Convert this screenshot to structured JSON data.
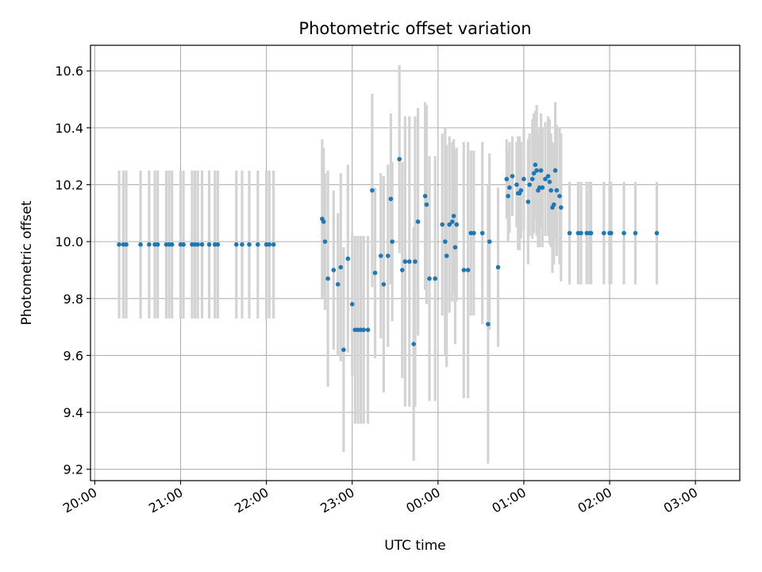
{
  "chart_data": {
    "type": "scatter",
    "title": "Photometric offset variation",
    "xlabel": "UTC time",
    "ylabel": "Photometric offset",
    "grid": true,
    "xlim": [
      "19:57",
      "03:31"
    ],
    "ylim": [
      9.16,
      10.69
    ],
    "x_ticks": [
      "20:00",
      "21:00",
      "22:00",
      "23:00",
      "00:00",
      "01:00",
      "02:00",
      "03:00"
    ],
    "y_ticks": [
      9.2,
      9.4,
      9.6,
      9.8,
      10.0,
      10.2,
      10.4,
      10.6
    ],
    "colors": {
      "points": "#1f77b4",
      "error_bars": "#d3d3d3",
      "grid": "#b0b0b0"
    },
    "series": [
      {
        "points": [
          {
            "x": "20:17",
            "y": 9.99,
            "err": 0.26
          },
          {
            "x": "20:20",
            "y": 9.99,
            "err": 0.26
          },
          {
            "x": "20:22",
            "y": 9.99,
            "err": 0.26
          },
          {
            "x": "20:32",
            "y": 9.99,
            "err": 0.26
          },
          {
            "x": "20:38",
            "y": 9.99,
            "err": 0.26
          },
          {
            "x": "20:42",
            "y": 9.99,
            "err": 0.26
          },
          {
            "x": "20:44",
            "y": 9.99,
            "err": 0.26
          },
          {
            "x": "20:50",
            "y": 9.99,
            "err": 0.26
          },
          {
            "x": "20:52",
            "y": 9.99,
            "err": 0.26
          },
          {
            "x": "20:54",
            "y": 9.99,
            "err": 0.26
          },
          {
            "x": "21:00",
            "y": 9.99,
            "err": 0.26
          },
          {
            "x": "21:02",
            "y": 9.99,
            "err": 0.26
          },
          {
            "x": "21:08",
            "y": 9.99,
            "err": 0.26
          },
          {
            "x": "21:10",
            "y": 9.99,
            "err": 0.26
          },
          {
            "x": "21:12",
            "y": 9.99,
            "err": 0.26
          },
          {
            "x": "21:15",
            "y": 9.99,
            "err": 0.26
          },
          {
            "x": "21:20",
            "y": 9.99,
            "err": 0.26
          },
          {
            "x": "21:24",
            "y": 9.99,
            "err": 0.26
          },
          {
            "x": "21:26",
            "y": 9.99,
            "err": 0.26
          },
          {
            "x": "21:39",
            "y": 9.99,
            "err": 0.26
          },
          {
            "x": "21:43",
            "y": 9.99,
            "err": 0.26
          },
          {
            "x": "21:48",
            "y": 9.99,
            "err": 0.26
          },
          {
            "x": "21:54",
            "y": 9.99,
            "err": 0.26
          },
          {
            "x": "22:00",
            "y": 9.99,
            "err": 0.26
          },
          {
            "x": "22:02",
            "y": 9.99,
            "err": 0.26
          },
          {
            "x": "22:05",
            "y": 9.99,
            "err": 0.26
          },
          {
            "x": "22:39",
            "y": 10.08,
            "err": 0.28
          },
          {
            "x": "22:40",
            "y": 10.07,
            "err": 0.26
          },
          {
            "x": "22:41",
            "y": 10.0,
            "err": 0.24
          },
          {
            "x": "22:43",
            "y": 9.87,
            "err": 0.38
          },
          {
            "x": "22:47",
            "y": 9.9,
            "err": 0.28
          },
          {
            "x": "22:50",
            "y": 9.85,
            "err": 0.25
          },
          {
            "x": "22:52",
            "y": 9.91,
            "err": 0.33
          },
          {
            "x": "22:54",
            "y": 9.62,
            "err": 0.36
          },
          {
            "x": "22:57",
            "y": 9.94,
            "err": 0.33
          },
          {
            "x": "23:00",
            "y": 9.78,
            "err": 0.25
          },
          {
            "x": "23:02",
            "y": 9.69,
            "err": 0.33
          },
          {
            "x": "23:04",
            "y": 9.69,
            "err": 0.33
          },
          {
            "x": "23:06",
            "y": 9.69,
            "err": 0.33
          },
          {
            "x": "23:08",
            "y": 9.69,
            "err": 0.33
          },
          {
            "x": "23:11",
            "y": 9.69,
            "err": 0.33
          },
          {
            "x": "23:14",
            "y": 10.18,
            "err": 0.34
          },
          {
            "x": "23:16",
            "y": 9.89,
            "err": 0.3
          },
          {
            "x": "23:20",
            "y": 9.95,
            "err": 0.29
          },
          {
            "x": "23:22",
            "y": 9.85,
            "err": 0.38
          },
          {
            "x": "23:25",
            "y": 9.95,
            "err": 0.32
          },
          {
            "x": "23:27",
            "y": 10.15,
            "err": 0.3
          },
          {
            "x": "23:28",
            "y": 10.0,
            "err": 0.28
          },
          {
            "x": "23:33",
            "y": 10.29,
            "err": 0.33
          },
          {
            "x": "23:35",
            "y": 9.9,
            "err": 0.38
          },
          {
            "x": "23:37",
            "y": 9.93,
            "err": 0.51
          },
          {
            "x": "23:40",
            "y": 9.93,
            "err": 0.51
          },
          {
            "x": "23:43",
            "y": 9.64,
            "err": 0.41
          },
          {
            "x": "23:44",
            "y": 9.93,
            "err": 0.51
          },
          {
            "x": "23:46",
            "y": 10.07,
            "err": 0.4
          },
          {
            "x": "23:51",
            "y": 10.16,
            "err": 0.33
          },
          {
            "x": "23:52",
            "y": 10.13,
            "err": 0.35
          },
          {
            "x": "23:54",
            "y": 9.87,
            "err": 0.43
          },
          {
            "x": "23:58",
            "y": 9.87,
            "err": 0.43
          },
          {
            "x": "00:03",
            "y": 10.06,
            "err": 0.32
          },
          {
            "x": "00:05",
            "y": 10.0,
            "err": 0.4
          },
          {
            "x": "00:06",
            "y": 9.95,
            "err": 0.39
          },
          {
            "x": "00:08",
            "y": 10.06,
            "err": 0.31
          },
          {
            "x": "00:10",
            "y": 10.07,
            "err": 0.28
          },
          {
            "x": "00:11",
            "y": 10.09,
            "err": 0.27
          },
          {
            "x": "00:12",
            "y": 9.98,
            "err": 0.34
          },
          {
            "x": "00:13",
            "y": 10.06,
            "err": 0.27
          },
          {
            "x": "00:18",
            "y": 9.9,
            "err": 0.45
          },
          {
            "x": "00:21",
            "y": 9.9,
            "err": 0.45
          },
          {
            "x": "00:23",
            "y": 10.03,
            "err": 0.29
          },
          {
            "x": "00:25",
            "y": 10.03,
            "err": 0.29
          },
          {
            "x": "00:31",
            "y": 10.03,
            "err": 0.32
          },
          {
            "x": "00:35",
            "y": 9.71,
            "err": 0.49
          },
          {
            "x": "00:36",
            "y": 10.0,
            "err": 0.31
          },
          {
            "x": "00:42",
            "y": 9.91,
            "err": 0.28
          },
          {
            "x": "00:48",
            "y": 10.22,
            "err": 0.14
          },
          {
            "x": "00:49",
            "y": 10.16,
            "err": 0.16
          },
          {
            "x": "00:50",
            "y": 10.19,
            "err": 0.16
          },
          {
            "x": "00:52",
            "y": 10.23,
            "err": 0.14
          },
          {
            "x": "00:55",
            "y": 10.2,
            "err": 0.15
          },
          {
            "x": "00:56",
            "y": 10.17,
            "err": 0.2
          },
          {
            "x": "00:57",
            "y": 10.17,
            "err": 0.2
          },
          {
            "x": "00:58",
            "y": 10.18,
            "err": 0.17
          },
          {
            "x": "01:00",
            "y": 10.22,
            "err": 0.18
          },
          {
            "x": "01:03",
            "y": 10.14,
            "err": 0.22
          },
          {
            "x": "01:04",
            "y": 10.2,
            "err": 0.18
          },
          {
            "x": "01:06",
            "y": 10.22,
            "err": 0.21
          },
          {
            "x": "01:07",
            "y": 10.24,
            "err": 0.21
          },
          {
            "x": "01:08",
            "y": 10.27,
            "err": 0.19
          },
          {
            "x": "01:09",
            "y": 10.25,
            "err": 0.23
          },
          {
            "x": "01:10",
            "y": 10.18,
            "err": 0.2
          },
          {
            "x": "01:11",
            "y": 10.19,
            "err": 0.21
          },
          {
            "x": "01:12",
            "y": 10.25,
            "err": 0.2
          },
          {
            "x": "01:13",
            "y": 10.19,
            "err": 0.21
          },
          {
            "x": "01:15",
            "y": 10.22,
            "err": 0.2
          },
          {
            "x": "01:17",
            "y": 10.23,
            "err": 0.21
          },
          {
            "x": "01:18",
            "y": 10.21,
            "err": 0.22
          },
          {
            "x": "01:19",
            "y": 10.18,
            "err": 0.2
          },
          {
            "x": "01:20",
            "y": 10.12,
            "err": 0.23
          },
          {
            "x": "01:21",
            "y": 10.13,
            "err": 0.21
          },
          {
            "x": "01:22",
            "y": 10.25,
            "err": 0.24
          },
          {
            "x": "01:23",
            "y": 10.18,
            "err": 0.23
          },
          {
            "x": "01:25",
            "y": 10.16,
            "err": 0.24
          },
          {
            "x": "01:26",
            "y": 10.12,
            "err": 0.26
          },
          {
            "x": "01:32",
            "y": 10.03,
            "err": 0.18
          },
          {
            "x": "01:38",
            "y": 10.03,
            "err": 0.18
          },
          {
            "x": "01:40",
            "y": 10.03,
            "err": 0.18
          },
          {
            "x": "01:44",
            "y": 10.03,
            "err": 0.18
          },
          {
            "x": "01:46",
            "y": 10.03,
            "err": 0.18
          },
          {
            "x": "01:47",
            "y": 10.03,
            "err": 0.18
          },
          {
            "x": "01:56",
            "y": 10.03,
            "err": 0.18
          },
          {
            "x": "02:00",
            "y": 10.03,
            "err": 0.18
          },
          {
            "x": "02:01",
            "y": 10.03,
            "err": 0.18
          },
          {
            "x": "02:10",
            "y": 10.03,
            "err": 0.18
          },
          {
            "x": "02:18",
            "y": 10.03,
            "err": 0.18
          },
          {
            "x": "02:33",
            "y": 10.03,
            "err": 0.18
          }
        ]
      }
    ]
  }
}
